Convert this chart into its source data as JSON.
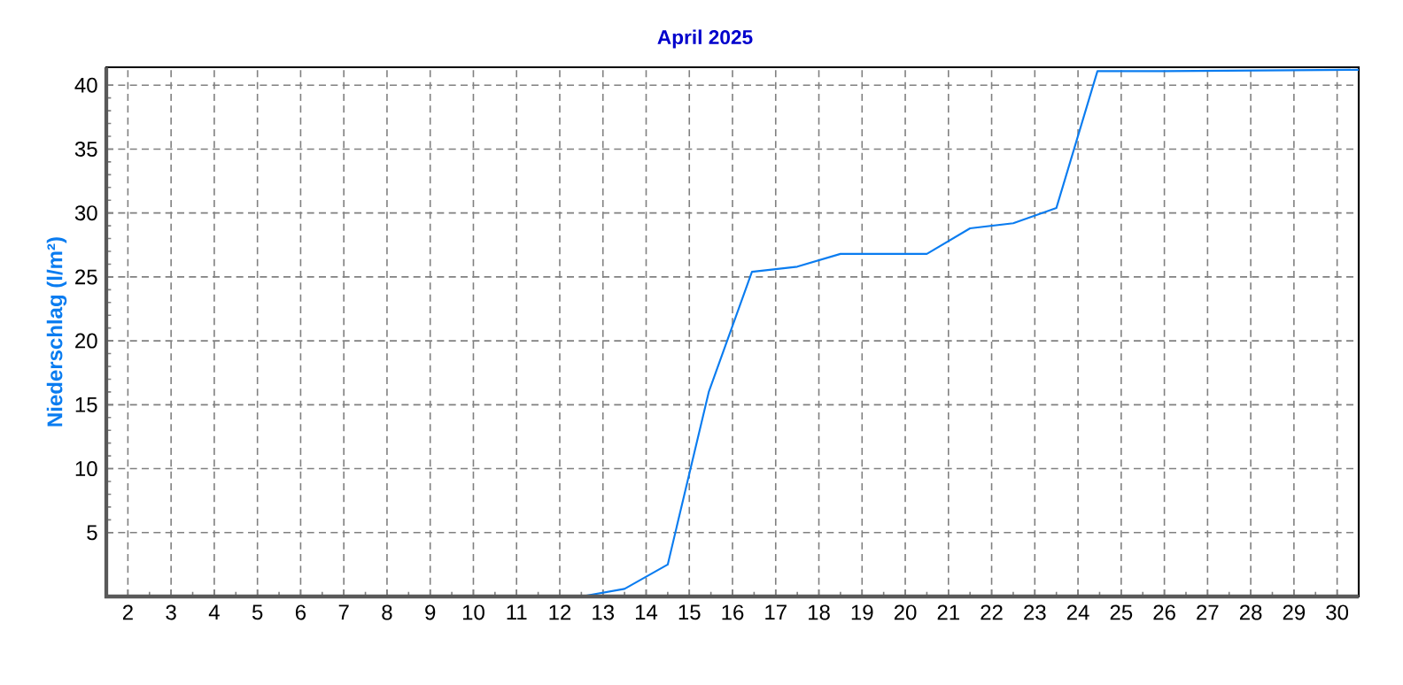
{
  "chart_data": {
    "type": "line",
    "title": "April 2025",
    "ylabel": "Niederschlag (l/m²)",
    "series": [
      {
        "color": "#0a7cf0",
        "x": [
          1.5,
          12.5,
          13.5,
          14.5,
          15.45,
          16.45,
          17.5,
          18.5,
          20.5,
          21.5,
          22.5,
          23.5,
          24.45,
          26,
          30.5
        ],
        "values": [
          0,
          0,
          0.6,
          2.5,
          16,
          25.4,
          25.8,
          26.8,
          26.8,
          28.8,
          29.2,
          30.4,
          41.1,
          41.1,
          41.2
        ]
      }
    ],
    "xlim": [
      1.5,
      30.5
    ],
    "ylim": [
      0,
      41.4
    ],
    "xticks": [
      2,
      3,
      4,
      5,
      6,
      7,
      8,
      9,
      10,
      11,
      12,
      13,
      14,
      15,
      16,
      17,
      18,
      19,
      20,
      21,
      22,
      23,
      24,
      25,
      26,
      27,
      28,
      29,
      30
    ],
    "yticks": [
      5,
      10,
      15,
      20,
      25,
      30,
      35,
      40
    ],
    "grid": true,
    "marker": "none",
    "line_style": "solid"
  }
}
